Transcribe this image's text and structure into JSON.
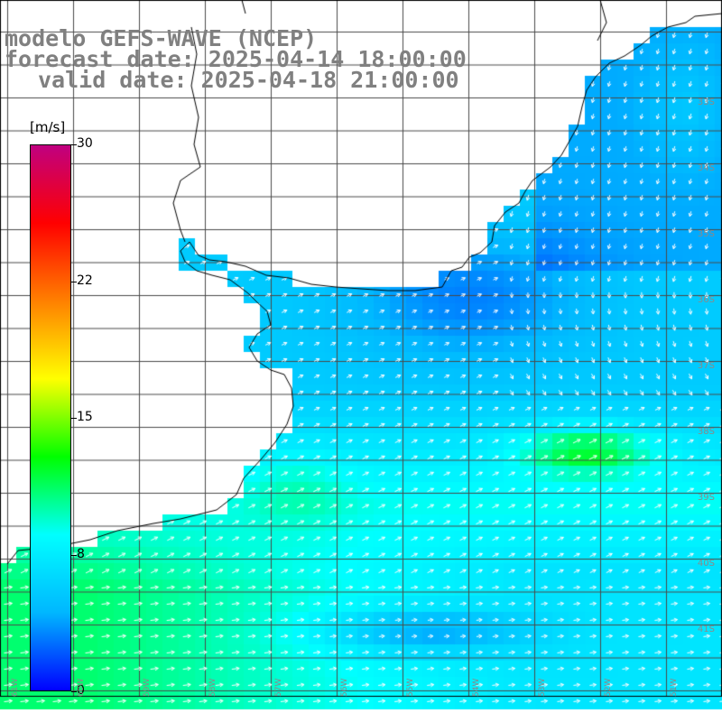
{
  "title": {
    "model": "modelo GEFS-WAVE (NCEP)",
    "forecast": "forecast date: 2025-04-14 18:00:00",
    "valid": "valid date: 2025-04-18 21:00:00"
  },
  "colorbar": {
    "units": "[m/s]",
    "min": 0,
    "max": 30,
    "ticks": [
      "30",
      "22",
      "15",
      "8",
      "0"
    ],
    "tick_values": [
      30,
      22.5,
      15,
      7.5,
      0
    ],
    "colors": [
      "#0000ff",
      "#00b7ff",
      "#00ffff",
      "#00ff00",
      "#ffff00",
      "#ff8000",
      "#ff0000",
      "#c00080"
    ]
  },
  "axes": {
    "lat_labels": [
      "33S",
      "34S",
      "35S",
      "36S",
      "37S",
      "38S",
      "39S",
      "40S",
      "41S"
    ],
    "lat_values": [
      33,
      34,
      35,
      36,
      37,
      38,
      39,
      40,
      41
    ],
    "lon_labels": [
      "61W",
      "60W",
      "59W",
      "58W",
      "57W",
      "56W",
      "55W",
      "54W",
      "53W",
      "52W",
      "51W"
    ],
    "lon_values": [
      61,
      60,
      59,
      58,
      57,
      56,
      55,
      54,
      53,
      52,
      51
    ]
  },
  "map": {
    "variable": "wind speed and direction",
    "land_color": "#ffffff",
    "coastline_color": "#000000"
  }
}
